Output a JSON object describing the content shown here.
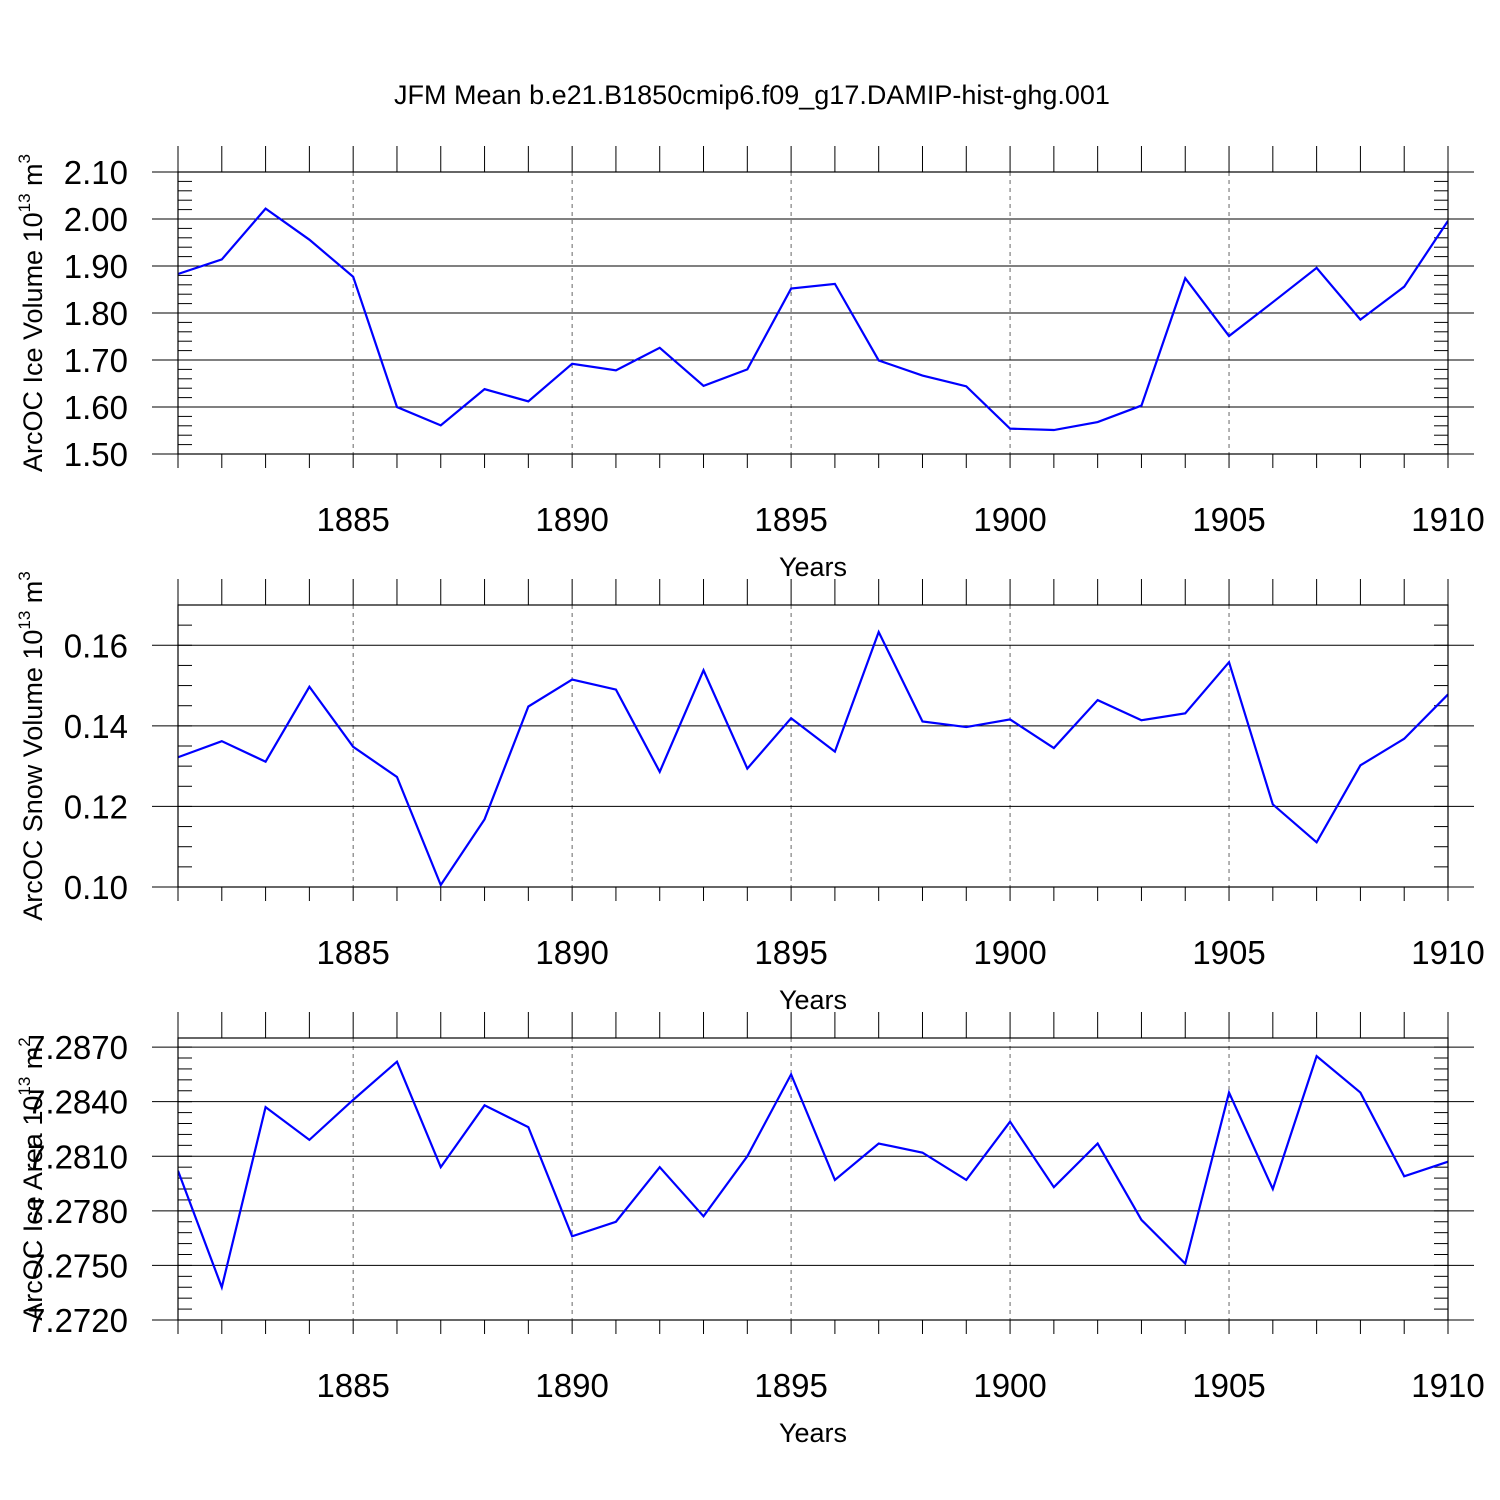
{
  "title": "JFM Mean b.e21.B1850cmip6.f09_g17.DAMIP-hist-ghg.001",
  "colors": {
    "series": "#0000ff",
    "axis": "#000000",
    "grid": "#666666"
  },
  "chart_data": [
    {
      "type": "line",
      "ylabel": "ArcOC Ice Volume 10",
      "ylabel_exp": "13",
      "ylabel_unit": " m",
      "ylabel_unit_exp": "3",
      "xlabel": "Years",
      "xlim": [
        1881,
        1910
      ],
      "ylim": [
        1.5,
        2.1
      ],
      "y_ticks": [
        "2.10",
        "2.00",
        "1.90",
        "1.80",
        "1.70",
        "1.60",
        "1.50"
      ],
      "y_tick_values": [
        2.1,
        2.0,
        1.9,
        1.8,
        1.7,
        1.6,
        1.5
      ],
      "y_minor_step": 0.02,
      "x_ticks": [
        "1885",
        "1890",
        "1895",
        "1900",
        "1905",
        "1910"
      ],
      "x_tick_values": [
        1885,
        1890,
        1895,
        1900,
        1905,
        1910
      ],
      "x": [
        1881,
        1882,
        1883,
        1884,
        1885,
        1886,
        1887,
        1888,
        1889,
        1890,
        1891,
        1892,
        1893,
        1894,
        1895,
        1896,
        1897,
        1898,
        1899,
        1900,
        1901,
        1902,
        1903,
        1904,
        1905,
        1906,
        1907,
        1908,
        1909,
        1910
      ],
      "values": [
        1.883,
        1.914,
        2.022,
        1.956,
        1.877,
        1.6,
        1.561,
        1.638,
        1.612,
        1.692,
        1.678,
        1.726,
        1.645,
        1.68,
        1.852,
        1.862,
        1.699,
        1.667,
        1.644,
        1.554,
        1.551,
        1.568,
        1.603,
        1.874,
        1.751,
        1.823,
        1.896,
        1.786,
        1.856,
        1.996
      ]
    },
    {
      "type": "line",
      "ylabel": "ArcOC Snow Volume 10",
      "ylabel_exp": "13",
      "ylabel_unit": " m",
      "ylabel_unit_exp": "3",
      "xlabel": "Years",
      "xlim": [
        1881,
        1910
      ],
      "ylim": [
        0.1,
        0.17
      ],
      "y_ticks": [
        "0.16",
        "0.14",
        "0.12",
        "0.10"
      ],
      "y_tick_values": [
        0.16,
        0.14,
        0.12,
        0.1
      ],
      "y_minor_step": 0.005,
      "x_ticks": [
        "1885",
        "1890",
        "1895",
        "1900",
        "1905",
        "1910"
      ],
      "x_tick_values": [
        1885,
        1890,
        1895,
        1900,
        1905,
        1910
      ],
      "x": [
        1881,
        1882,
        1883,
        1884,
        1885,
        1886,
        1887,
        1888,
        1889,
        1890,
        1891,
        1892,
        1893,
        1894,
        1895,
        1896,
        1897,
        1898,
        1899,
        1900,
        1901,
        1902,
        1903,
        1904,
        1905,
        1906,
        1907,
        1908,
        1909,
        1910
      ],
      "values": [
        0.1322,
        0.1362,
        0.1311,
        0.1497,
        0.1348,
        0.1273,
        0.1005,
        0.1168,
        0.1448,
        0.1515,
        0.149,
        0.1286,
        0.1538,
        0.1294,
        0.1419,
        0.1336,
        0.1633,
        0.1411,
        0.1397,
        0.1416,
        0.1345,
        0.1464,
        0.1414,
        0.1431,
        0.1558,
        0.1205,
        0.1111,
        0.1302,
        0.1368,
        0.1478
      ]
    },
    {
      "type": "line",
      "ylabel": "ArcOC Ice Area 10",
      "ylabel_exp": "13",
      "ylabel_unit": " m",
      "ylabel_unit_exp": "2",
      "xlabel": "Years",
      "xlim": [
        1881,
        1910
      ],
      "ylim": [
        7.272,
        7.2875
      ],
      "y_ticks": [
        "7.2870",
        "7.2840",
        "7.2810",
        "7.2780",
        "7.2750",
        "7.2720"
      ],
      "y_tick_values": [
        7.287,
        7.284,
        7.281,
        7.278,
        7.275,
        7.272
      ],
      "y_minor_step": 0.0006,
      "x_ticks": [
        "1885",
        "1890",
        "1895",
        "1900",
        "1905",
        "1910"
      ],
      "x_tick_values": [
        1885,
        1890,
        1895,
        1900,
        1905,
        1910
      ],
      "x": [
        1881,
        1882,
        1883,
        1884,
        1885,
        1886,
        1887,
        1888,
        1889,
        1890,
        1891,
        1892,
        1893,
        1894,
        1895,
        1896,
        1897,
        1898,
        1899,
        1900,
        1901,
        1902,
        1903,
        1904,
        1905,
        1906,
        1907,
        1908,
        1909,
        1910
      ],
      "values": [
        7.2802,
        7.2738,
        7.2837,
        7.2819,
        7.2841,
        7.2862,
        7.2804,
        7.2838,
        7.2826,
        7.2766,
        7.2774,
        7.2804,
        7.2777,
        7.281,
        7.2855,
        7.2797,
        7.2817,
        7.2812,
        7.2797,
        7.2829,
        7.2793,
        7.2817,
        7.2775,
        7.2751,
        7.2845,
        7.2792,
        7.2865,
        7.2845,
        7.2799,
        7.2807
      ]
    }
  ]
}
